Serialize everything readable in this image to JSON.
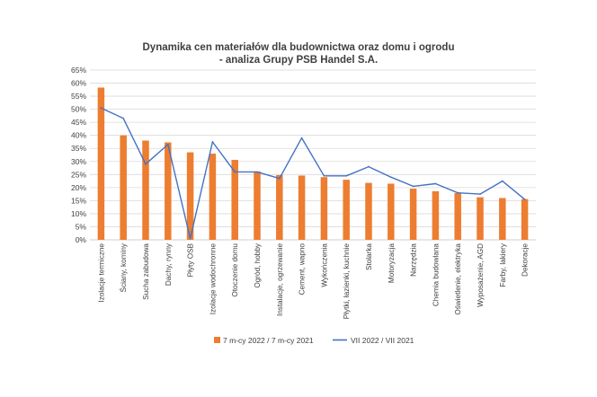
{
  "chart_data": {
    "type": "bar",
    "title_lines": [
      "Dynamika cen materiałów dla budownictwa oraz domu i ogrodu",
      "- analiza Grupy PSB Handel S.A."
    ],
    "y_ticks": [
      "0%",
      "5%",
      "10%",
      "15%",
      "20%",
      "25%",
      "30%",
      "35%",
      "40%",
      "45%",
      "50%",
      "55%",
      "60%",
      "65%"
    ],
    "ylim": [
      0,
      65
    ],
    "y_unit": "%",
    "grid": true,
    "legend_position": "bottom",
    "categories": [
      "Izolacje termiczne",
      "Ściany, kominy",
      "Sucha zabudowa",
      "Dachy, rynny",
      "Płyty OSB",
      "Izolacje wodochronne",
      "Otoczenie domu",
      "Ogród, hobby",
      "Instalacje, ogrzewanie",
      "Cement, wapno",
      "Wykończenia",
      "Płytki, łazienki, kuchnie",
      "Stolarka",
      "Motoryzacja",
      "Narzędzia",
      "Chemia budowlana",
      "Oświetlenie, elektryka",
      "Wyposażenie, AGD",
      "Farby, lakiery",
      "Dekoracje"
    ],
    "series": [
      {
        "name": "7 m-cy 2022 / 7 m-cy 2021",
        "kind": "bar",
        "color": "#ED7D31",
        "values": [
          58.3,
          40.0,
          38.0,
          37.3,
          33.5,
          33.0,
          30.6,
          26.2,
          24.8,
          24.6,
          24.0,
          23.0,
          21.8,
          21.5,
          19.6,
          18.6,
          17.9,
          16.3,
          16.0,
          15.6
        ]
      },
      {
        "name": "VII 2022 / VII 2021",
        "kind": "line",
        "color": "#4472C4",
        "values": [
          50.5,
          46.5,
          29.0,
          36.5,
          0.5,
          37.5,
          26.0,
          26.0,
          23.5,
          39.0,
          24.5,
          24.5,
          28.0,
          24.0,
          20.5,
          21.5,
          18.0,
          17.5,
          22.5,
          15.5
        ]
      }
    ]
  }
}
